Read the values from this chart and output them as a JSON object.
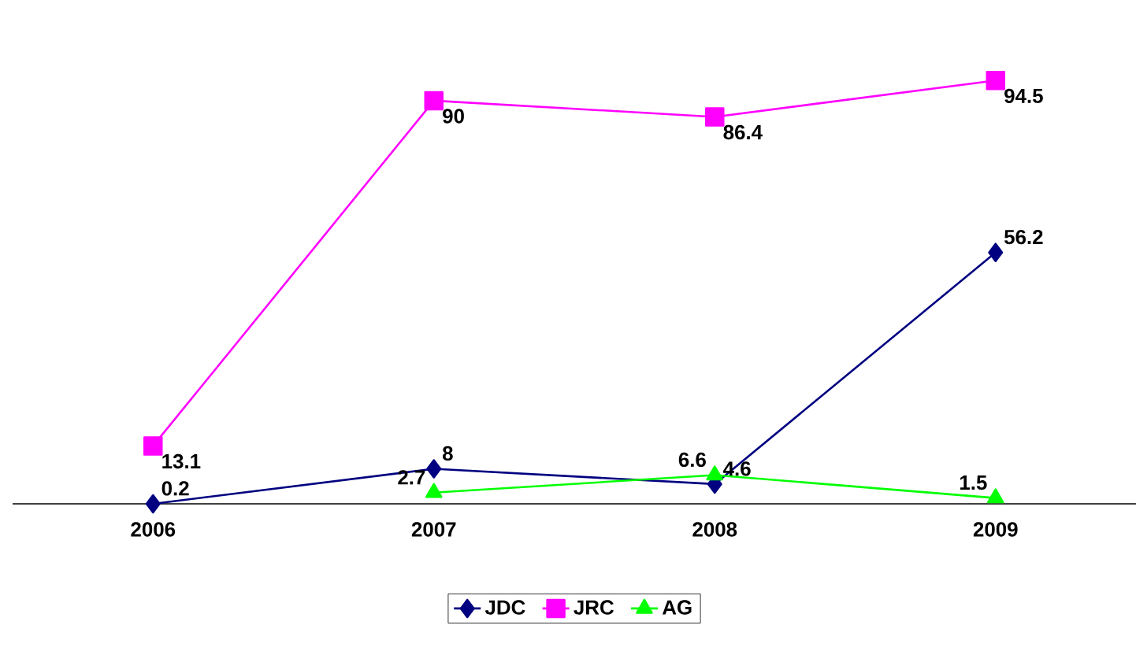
{
  "chart_data": {
    "type": "line",
    "categories": [
      "2006",
      "2007",
      "2008",
      "2009"
    ],
    "series": [
      {
        "name": "JDC",
        "color": "#000080",
        "marker": "diamond",
        "values": [
          0.2,
          8,
          4.6,
          56.2
        ]
      },
      {
        "name": "JRC",
        "color": "#ff00ff",
        "marker": "square",
        "values": [
          13.1,
          90,
          86.4,
          94.5
        ]
      },
      {
        "name": "AG",
        "color": "#00ff00",
        "marker": "triangle",
        "values": [
          null,
          2.7,
          6.6,
          1.5
        ]
      }
    ],
    "data_labels": true,
    "legend": "bottom",
    "grid": false
  }
}
